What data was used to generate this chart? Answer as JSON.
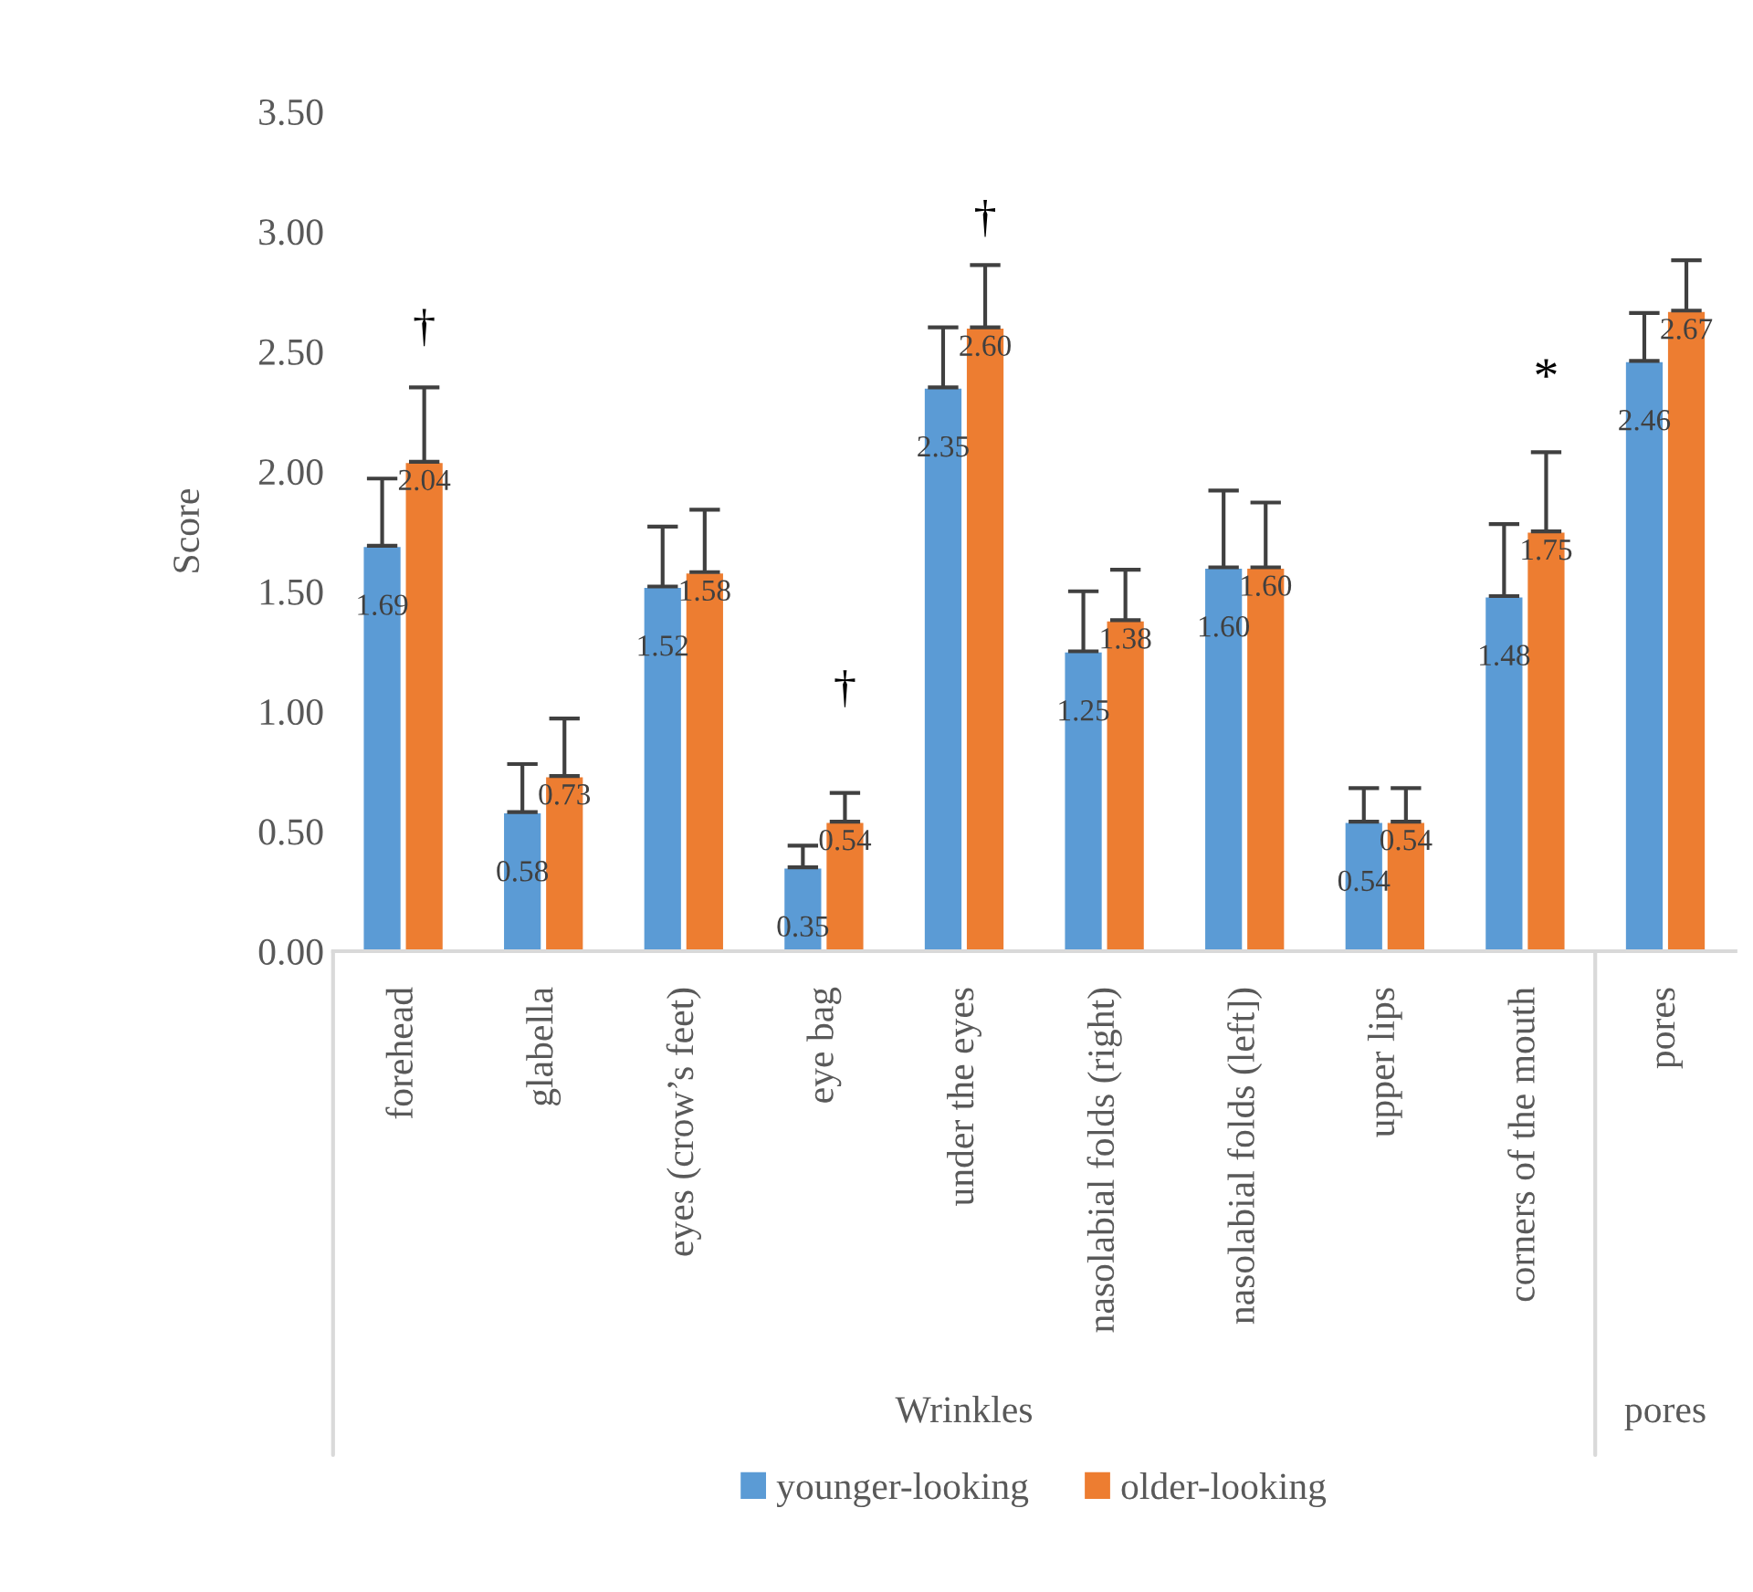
{
  "chart_data": {
    "type": "bar",
    "ylabel": "Score",
    "categories": [
      "forehead",
      "glabella",
      "eyes (crow’s feet)",
      "eye bag",
      "under the eyes",
      "nasolabial folds (right)",
      "nasolabial folds (left])",
      "upper lips",
      "corners of the mouth",
      "pores"
    ],
    "series": [
      {
        "name": "younger-looking",
        "color": "#5b9bd5",
        "values": [
          1.69,
          0.58,
          1.52,
          0.35,
          2.35,
          1.25,
          1.6,
          0.54,
          1.48,
          2.46
        ],
        "errors": [
          [
            1.69,
            1.97
          ],
          [
            0.58,
            0.78
          ],
          [
            1.52,
            1.77
          ],
          [
            0.35,
            0.44
          ],
          [
            2.35,
            2.6
          ],
          [
            1.25,
            1.5
          ],
          [
            1.6,
            1.92
          ],
          [
            0.54,
            0.68
          ],
          [
            1.48,
            1.78
          ],
          [
            2.46,
            2.66
          ]
        ],
        "value_labels": [
          "1.69",
          "0.58",
          "1.52",
          "0.35",
          "2.35",
          "1.25",
          "1.60",
          "0.54",
          "1.48",
          "2.46"
        ]
      },
      {
        "name": "older-looking",
        "color": "#ed7d31",
        "values": [
          2.04,
          0.73,
          1.58,
          0.54,
          2.6,
          1.38,
          1.6,
          0.54,
          1.75,
          2.67
        ],
        "errors": [
          [
            2.04,
            2.35
          ],
          [
            0.73,
            0.97
          ],
          [
            1.58,
            1.84
          ],
          [
            0.54,
            0.66
          ],
          [
            2.6,
            2.86
          ],
          [
            1.38,
            1.59
          ],
          [
            1.6,
            1.87
          ],
          [
            0.54,
            0.68
          ],
          [
            1.75,
            2.08
          ],
          [
            2.67,
            2.88
          ]
        ],
        "value_labels": [
          "2.04",
          "0.73",
          "1.58",
          "0.54",
          "2.60",
          "1.38",
          "1.60",
          "0.54",
          "1.75",
          "2.67"
        ]
      }
    ],
    "ylim": [
      0,
      3.5
    ],
    "yticks": [
      {
        "value": 0,
        "label": "0.00"
      },
      {
        "value": 0.5,
        "label": "0.50"
      },
      {
        "value": 1,
        "label": "1.00"
      },
      {
        "value": 1.5,
        "label": "1.50"
      },
      {
        "value": 2,
        "label": "2.00"
      },
      {
        "value": 2.5,
        "label": "2.50"
      },
      {
        "value": 3,
        "label": "3.00"
      },
      {
        "value": 3.5,
        "label": "3.50"
      }
    ],
    "legend": "bottom",
    "grid": false,
    "annotations": [
      "†",
      "†",
      "†",
      "*",
      "Wrinkles",
      "pores"
    ]
  }
}
